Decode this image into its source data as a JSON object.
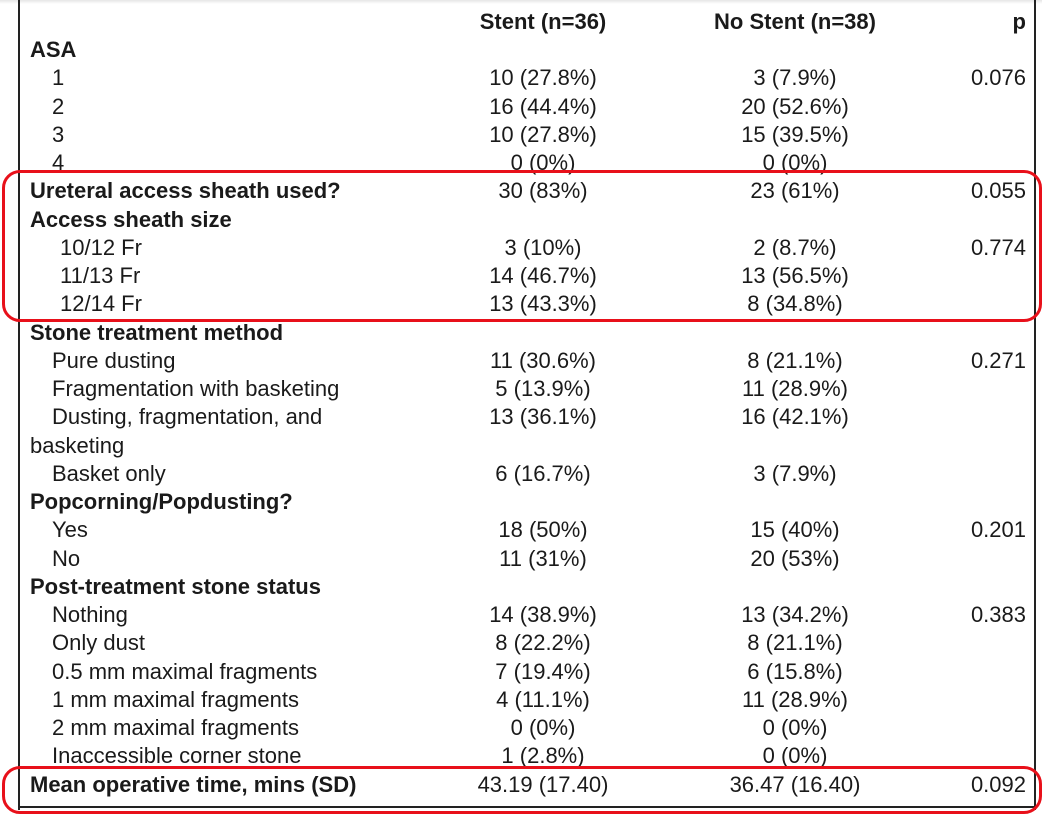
{
  "colors": {
    "highlight": "#e8101a",
    "text": "#1a1a1a",
    "border": "#222222"
  },
  "header": {
    "stent": "Stent (n=36)",
    "no_stent": "No Stent (n=38)",
    "p": "p"
  },
  "rows": [
    {
      "label": "ASA",
      "bold": true
    },
    {
      "label": "1",
      "indent": 1,
      "stent": "10 (27.8%)",
      "no_stent": "3 (7.9%)",
      "p": "0.076"
    },
    {
      "label": "2",
      "indent": 1,
      "stent": "16 (44.4%)",
      "no_stent": "20 (52.6%)"
    },
    {
      "label": "3",
      "indent": 1,
      "stent": "10 (27.8%)",
      "no_stent": "15 (39.5%)"
    },
    {
      "label": "4",
      "indent": 1,
      "stent": "0 (0%)",
      "no_stent": "0 (0%)"
    },
    {
      "label": "Ureteral access sheath used?",
      "bold": true,
      "stent": "30 (83%)",
      "no_stent": "23 (61%)",
      "p": "0.055"
    },
    {
      "label": "Access sheath size",
      "bold": true
    },
    {
      "label": "10/12 Fr",
      "indent": 2,
      "stent": "3 (10%)",
      "no_stent": "2 (8.7%)",
      "p": "0.774"
    },
    {
      "label": "11/13 Fr",
      "indent": 2,
      "stent": "14 (46.7%)",
      "no_stent": "13 (56.5%)"
    },
    {
      "label": "12/14 Fr",
      "indent": 2,
      "stent": "13 (43.3%)",
      "no_stent": "8 (34.8%)"
    },
    {
      "label": "Stone treatment method",
      "bold": true
    },
    {
      "label": "Pure dusting",
      "indent": 1,
      "stent": "11 (30.6%)",
      "no_stent": "8 (21.1%)",
      "p": "0.271"
    },
    {
      "label": "Fragmentation with basketing",
      "indent": 1,
      "stent": "5 (13.9%)",
      "no_stent": "11 (28.9%)"
    },
    {
      "label": "Dusting, fragmentation, and",
      "indent": 1,
      "stent": "13 (36.1%)",
      "no_stent": "16 (42.1%)"
    },
    {
      "label": "basketing",
      "indent": 0
    },
    {
      "label": "Basket only",
      "indent": 1,
      "stent": "6 (16.7%)",
      "no_stent": "3 (7.9%)"
    },
    {
      "label": "Popcorning/Popdusting?",
      "bold": true
    },
    {
      "label": "Yes",
      "indent": 1,
      "stent": "18 (50%)",
      "no_stent": "15 (40%)",
      "p": "0.201"
    },
    {
      "label": "No",
      "indent": 1,
      "stent": "11 (31%)",
      "no_stent": "20 (53%)"
    },
    {
      "label": "Post-treatment stone status",
      "bold": true
    },
    {
      "label": "Nothing",
      "indent": 1,
      "stent": "14 (38.9%)",
      "no_stent": "13 (34.2%)",
      "p": "0.383"
    },
    {
      "label": "Only dust",
      "indent": 1,
      "stent": "8 (22.2%)",
      "no_stent": "8 (21.1%)"
    },
    {
      "label": "0.5 mm maximal fragments",
      "indent": 1,
      "stent": "7 (19.4%)",
      "no_stent": "6 (15.8%)"
    },
    {
      "label": "1 mm maximal fragments",
      "indent": 1,
      "stent": "4 (11.1%)",
      "no_stent": "11 (28.9%)"
    },
    {
      "label": "2 mm maximal fragments",
      "indent": 1,
      "stent": "0 (0%)",
      "no_stent": "0 (0%)"
    },
    {
      "label": "Inaccessible corner stone",
      "indent": 1,
      "stent": "1 (2.8%)",
      "no_stent": "0 (0%)"
    },
    {
      "label": "Mean operative time, mins (SD)",
      "bold": true,
      "stent": "43.19 (17.40)",
      "no_stent": "36.47 (16.40)",
      "p": "0.092"
    }
  ]
}
